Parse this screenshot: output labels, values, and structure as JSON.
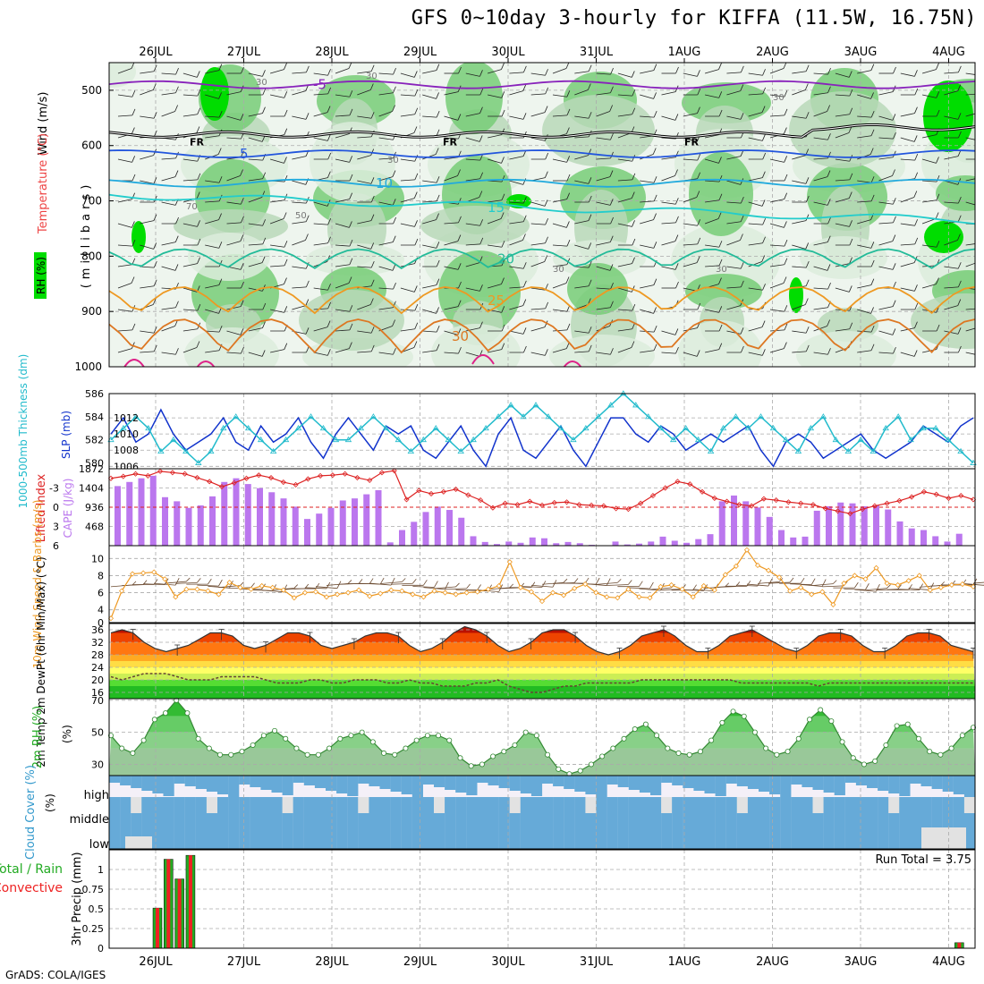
{
  "title": "GFS 0~10day 3-hourly for KIFFA (11.5W, 16.75N)",
  "footer": "GrADS: COLA/IGES",
  "colors": {
    "rh_dark": "#00dd00",
    "rh_mid": "#77cc77",
    "rh_light": "#b8d8b8",
    "rh_pale": "#dcecdc",
    "slp": "#1133cc",
    "thickness": "#22bbcc",
    "lifted_index": "#dd2222",
    "cape": "#bb77ee",
    "wind_speed": "#ee9922",
    "barbs": "#333333",
    "cloud": "#66aad8",
    "precip_total": "#22aa22",
    "precip_conv": "#ee2222"
  },
  "chart_data": [
    {
      "panel": "upper_air",
      "type": "heatmap",
      "ylabel_rh": "RH (%)",
      "ylabel_temp": "Temperature (°C)",
      "ylabel_wind": "Wind (m/s)",
      "ylabel_p": "(millibars)",
      "x_ticks": [
        "26JUL",
        "27JUL",
        "28JUL",
        "29JUL",
        "30JUL",
        "31JUL",
        "1AUG",
        "2AUG",
        "3AUG",
        "4AUG"
      ],
      "x_days": [
        0,
        1,
        2,
        3,
        4,
        5,
        6,
        7,
        8,
        9
      ],
      "y_ticks": [
        "500",
        "600",
        "700",
        "800",
        "900",
        "1000"
      ],
      "y_values": [
        500,
        600,
        700,
        800,
        900,
        1000
      ],
      "ylim": [
        450,
        1000
      ],
      "freezing_label": "FR",
      "freezing_level": 580,
      "isotherms": [
        {
          "value": -5,
          "label": "-5",
          "pressure": 490,
          "color": "#8822bb"
        },
        {
          "value": 5,
          "label": "5",
          "pressure": 615,
          "color": "#2255dd"
        },
        {
          "value": 10,
          "label": "10",
          "pressure": 668,
          "color": "#22aadd"
        },
        {
          "value": 15,
          "label": "15",
          "pressure": 712,
          "color": "#22cccc"
        },
        {
          "value": 20,
          "label": "20",
          "pressure": 805,
          "color": "#22bb99"
        },
        {
          "value": 25,
          "label": "25",
          "pressure": 880,
          "color": "#ee9922"
        },
        {
          "value": 30,
          "label": "30",
          "pressure": 945,
          "color": "#dd7722"
        }
      ],
      "rh_labels": [
        "30",
        "50",
        "70"
      ]
    },
    {
      "panel": "slp_thickness",
      "type": "line",
      "ylabel_left": "1000-500mb Thickness (dm)",
      "ylabel_right": "SLP (mb)",
      "left_ticks": [
        "580",
        "582",
        "584",
        "586"
      ],
      "left_values": [
        580,
        582,
        584,
        586
      ],
      "left_ylim": [
        579.5,
        586
      ],
      "right_ticks": [
        "1006",
        "1008",
        "1010",
        "1012"
      ],
      "right_values": [
        1006,
        1008,
        1010,
        1012
      ],
      "right_ylim": [
        1005.7,
        1015
      ],
      "series": [
        {
          "name": "SLP",
          "axis": "right",
          "values": [
            1010,
            1012,
            1009,
            1010,
            1013,
            1010,
            1008,
            1009,
            1010,
            1012,
            1009,
            1008,
            1011,
            1009,
            1010,
            1012,
            1009,
            1007,
            1010,
            1012,
            1010,
            1008,
            1011,
            1010,
            1011,
            1008,
            1007,
            1009,
            1011,
            1008,
            1006,
            1010,
            1012,
            1008,
            1007,
            1009,
            1011,
            1008,
            1006,
            1009,
            1012,
            1012,
            1010,
            1009,
            1011,
            1010,
            1008,
            1009,
            1010,
            1009,
            1010,
            1011,
            1008,
            1006,
            1009,
            1010,
            1009,
            1007,
            1008,
            1009,
            1010,
            1008,
            1007,
            1008,
            1009,
            1011,
            1010,
            1009,
            1011,
            1012
          ]
        },
        {
          "name": "Thickness",
          "axis": "left",
          "values": [
            582,
            583,
            584,
            583,
            581,
            582,
            581,
            580,
            581,
            583,
            584,
            583,
            582,
            581,
            582,
            583,
            584,
            583,
            582,
            582,
            583,
            584,
            583,
            582,
            581,
            582,
            583,
            582,
            581,
            582,
            583,
            584,
            585,
            584,
            585,
            584,
            583,
            582,
            583,
            584,
            585,
            586,
            585,
            584,
            583,
            582,
            583,
            582,
            581,
            583,
            584,
            583,
            584,
            583,
            582,
            581,
            583,
            584,
            582,
            581,
            582,
            581,
            583,
            584,
            582,
            583,
            583,
            582,
            581,
            580
          ]
        }
      ]
    },
    {
      "panel": "li_cape",
      "type": "bar",
      "ylabel_left": "Lifted Index",
      "ylabel_right": "CAPE (J/kg)",
      "left_ticks": [
        "-3",
        "0",
        "3",
        "6"
      ],
      "left_values": [
        -3,
        0,
        3,
        6
      ],
      "left_ylim": [
        -6,
        6
      ],
      "right_ticks": [
        "468",
        "936",
        "1404",
        "1872"
      ],
      "right_values": [
        468,
        936,
        1404,
        1872
      ],
      "right_ylim": [
        0,
        1872
      ],
      "series": [
        {
          "name": "CAPE",
          "axis": "right",
          "values": [
            1450,
            1550,
            1640,
            1700,
            1180,
            1080,
            920,
            980,
            1200,
            1550,
            1640,
            1500,
            1400,
            1300,
            1150,
            950,
            650,
            780,
            920,
            1100,
            1150,
            1250,
            1350,
            80,
            380,
            580,
            820,
            950,
            870,
            680,
            230,
            90,
            40,
            100,
            70,
            200,
            180,
            60,
            90,
            60,
            20,
            10,
            100,
            30,
            50,
            100,
            220,
            120,
            70,
            160,
            280,
            1080,
            1220,
            1080,
            930,
            700,
            380,
            200,
            220,
            850,
            960,
            1050,
            1030,
            960,
            980,
            880,
            590,
            420,
            380,
            230,
            100,
            290
          ]
        },
        {
          "name": "Lifted Index",
          "axis": "left",
          "values": [
            -4.5,
            -4.8,
            -5.2,
            -4.9,
            -5.6,
            -5.4,
            -5.2,
            -4.6,
            -4.0,
            -3.2,
            -3.8,
            -4.5,
            -5.0,
            -4.6,
            -3.9,
            -3.5,
            -4.4,
            -4.9,
            -5.0,
            -5.2,
            -4.6,
            -4.2,
            -5.4,
            -5.7,
            -1.2,
            -2.6,
            -2.1,
            -2.4,
            -2.8,
            -1.9,
            -1.1,
            0.1,
            -0.6,
            -0.4,
            -0.9,
            -0.3,
            -0.7,
            -0.8,
            -0.4,
            -0.3,
            -0.2,
            0.2,
            0.3,
            -0.6,
            -1.8,
            -3.0,
            -4.0,
            -3.6,
            -2.4,
            -1.4,
            -0.9,
            -0.4,
            -0.2,
            -1.3,
            -1.1,
            -0.8,
            -0.6,
            -0.4,
            0.2,
            0.6,
            1.0,
            0.3,
            -0.2,
            -0.6,
            -1.0,
            -1.6,
            -2.4,
            -2.0,
            -1.4,
            -1.8,
            -1.2
          ]
        }
      ]
    },
    {
      "panel": "wind10m",
      "type": "line",
      "ylabel": "10m Wind Speed & Barbs (m/s)",
      "y_ticks": [
        "4",
        "6",
        "8",
        "10"
      ],
      "y_values": [
        4,
        6,
        8,
        10
      ],
      "ylim": [
        2.5,
        11.5
      ],
      "x_min_label": "0",
      "series": [
        {
          "name": "Wind speed",
          "values": [
            3.0,
            6.2,
            8.2,
            8.3,
            8.4,
            7.6,
            5.5,
            6.4,
            6.4,
            6.2,
            5.8,
            7.2,
            6.6,
            6.4,
            6.8,
            6.6,
            6.3,
            5.4,
            6.0,
            6.1,
            5.5,
            5.8,
            6.0,
            6.3,
            5.6,
            5.9,
            6.3,
            6.2,
            5.8,
            5.5,
            6.2,
            6.0,
            5.8,
            6.0,
            6.1,
            6.4,
            6.8,
            9.6,
            6.6,
            6.1,
            5.0,
            6.0,
            5.7,
            6.5,
            7.0,
            6.0,
            5.5,
            5.4,
            6.4,
            5.5,
            5.4,
            6.7,
            6.9,
            6.4,
            5.5,
            6.8,
            6.3,
            8.1,
            9.1,
            11.0,
            9.2,
            8.6,
            7.8,
            6.2,
            6.6,
            5.8,
            6.1,
            4.6,
            7.1,
            8.0,
            7.6,
            8.9,
            7.1,
            6.9,
            7.4,
            8.0,
            6.3,
            6.6,
            6.9,
            7.0,
            6.7
          ]
        }
      ]
    },
    {
      "panel": "temp2m",
      "type": "area",
      "ylabel": "2m Temp 2m DewPt (6hr Min/Max) (°C)",
      "y_ticks": [
        "16",
        "20",
        "24",
        "28",
        "32",
        "36"
      ],
      "y_values": [
        16,
        20,
        24,
        28,
        32,
        36
      ],
      "ylim": [
        14,
        38
      ],
      "series": [
        {
          "name": "2m Temp",
          "values": [
            35,
            36,
            35,
            32,
            30,
            29,
            30,
            31,
            33,
            35,
            35,
            34,
            31,
            30,
            31,
            33,
            35,
            35,
            34,
            31,
            30,
            31,
            32,
            34,
            35,
            35,
            34,
            31,
            29,
            30,
            32,
            35,
            37,
            36,
            34,
            31,
            29,
            30,
            32,
            35,
            36,
            36,
            34,
            31,
            29,
            28,
            29,
            31,
            34,
            35,
            36,
            34,
            31,
            29,
            29,
            31,
            34,
            35,
            36,
            34,
            32,
            30,
            29,
            31,
            34,
            35,
            35,
            34,
            31,
            29,
            29,
            31,
            34,
            35,
            35,
            34,
            31,
            30,
            29
          ]
        },
        {
          "name": "2m DewPt",
          "values": [
            21,
            20,
            21,
            22,
            22,
            22,
            21,
            20,
            20,
            20,
            21,
            21,
            21,
            21,
            20,
            19,
            19,
            19,
            20,
            20,
            19,
            19,
            20,
            20,
            20,
            19,
            19,
            20,
            19,
            19,
            18,
            18,
            18,
            19,
            19,
            20,
            18,
            17,
            16,
            16,
            17,
            18,
            18,
            19,
            19,
            19,
            19,
            19,
            20,
            20,
            20,
            20,
            20,
            20,
            20,
            20,
            20,
            19,
            19,
            19,
            19,
            19,
            19,
            19,
            18,
            19,
            19,
            19,
            19,
            19,
            19,
            19,
            19,
            19,
            19,
            19,
            19,
            19,
            19
          ]
        }
      ]
    },
    {
      "panel": "rh2m",
      "type": "area",
      "ylabel": "2m RH (%)",
      "y_ticks": [
        "30",
        "50",
        "70"
      ],
      "y_values": [
        30,
        50,
        70
      ],
      "ylim": [
        23,
        71
      ],
      "series": [
        {
          "name": "2m RH",
          "values": [
            48,
            40,
            37,
            45,
            58,
            62,
            70,
            62,
            46,
            40,
            36,
            36,
            38,
            42,
            48,
            51,
            46,
            40,
            36,
            36,
            40,
            46,
            48,
            50,
            44,
            37,
            36,
            40,
            45,
            48,
            48,
            45,
            34,
            29,
            30,
            35,
            38,
            42,
            50,
            48,
            36,
            27,
            24,
            26,
            30,
            35,
            40,
            46,
            52,
            55,
            48,
            40,
            37,
            36,
            38,
            45,
            56,
            63,
            60,
            50,
            40,
            36,
            38,
            46,
            58,
            64,
            57,
            44,
            34,
            30,
            32,
            42,
            54,
            55,
            46,
            38,
            36,
            40,
            48,
            53
          ]
        }
      ]
    },
    {
      "panel": "cloud",
      "type": "bar",
      "ylabel": "Cloud Cover (%)",
      "levels": [
        "high",
        "middle",
        "low"
      ]
    },
    {
      "panel": "precip",
      "type": "bar",
      "ylabel_total": "Total / Rain",
      "ylabel_conv": "Convective",
      "ylabel": "3hr Precip (mm)",
      "y_ticks": [
        "0",
        "0.25",
        "0.5",
        "0.75",
        "1"
      ],
      "y_values": [
        0,
        0.25,
        0.5,
        0.75,
        1
      ],
      "ylim": [
        0,
        1.25
      ],
      "run_total_label": "Run Total = 3.75",
      "bars": [
        {
          "x": 0,
          "value": 0.51
        },
        {
          "x": 0.125,
          "value": 1.13
        },
        {
          "x": 0.25,
          "value": 0.88
        },
        {
          "x": 0.375,
          "value": 1.18
        },
        {
          "x": 9.1,
          "value": 0.07
        }
      ]
    }
  ]
}
